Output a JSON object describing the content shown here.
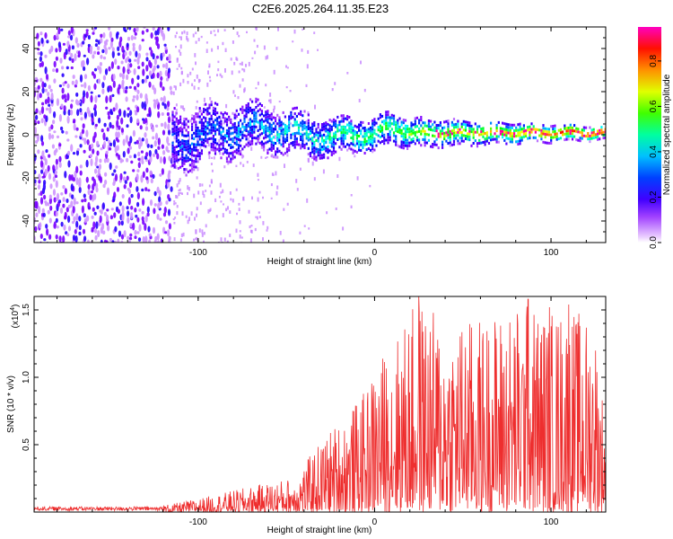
{
  "title": "C2E6.2025.264.11.35.E23",
  "colors": {
    "signal": "#ee2e2e",
    "frame": "#000000"
  },
  "chart_data": [
    {
      "type": "heatmap",
      "name": "spectrogram",
      "xlabel": "Height of straight line (km)",
      "ylabel": "Frequency (Hz)",
      "xlim": [
        -193,
        131
      ],
      "ylim": [
        -50,
        50
      ],
      "xticks": [
        -100,
        0,
        100
      ],
      "yticks": [
        40,
        20,
        0,
        -20,
        -40
      ],
      "colorbar": {
        "label": "Normalized spectral amplitude",
        "range": [
          0,
          0.95
        ],
        "ticks": [
          0.0,
          0.2,
          0.4,
          0.6,
          0.8
        ],
        "colormap": [
          "#e8c8ff",
          "#8000ff",
          "#0000ff",
          "#00ffff",
          "#00ff00",
          "#ffff00",
          "#ff8000",
          "#ff0000",
          "#ff00a0"
        ]
      },
      "regions": [
        {
          "description": "broadband noise",
          "x_range": [
            -193,
            -115
          ],
          "freq_range": [
            -50,
            50
          ],
          "amplitude": [
            0.05,
            0.2
          ]
        },
        {
          "description": "scattered weak noise",
          "x_range": [
            -115,
            0
          ],
          "freq_range": [
            -50,
            50
          ],
          "amplitude": [
            0.0,
            0.05
          ]
        },
        {
          "description": "signal band",
          "x_range": [
            -115,
            131
          ],
          "freq_center": 0,
          "freq_halfwidth_start": 14,
          "freq_halfwidth_end": 3,
          "amplitude": [
            0.1,
            0.95
          ]
        }
      ]
    },
    {
      "type": "line",
      "name": "snr",
      "xlabel": "Height of straight line (km)",
      "ylabel": "SNR (10 * v/v)",
      "y_multiplier_label": "(x10",
      "y_multiplier_exponent": "4",
      "y_multiplier_close": ")",
      "xlim": [
        -193,
        131
      ],
      "ylim": [
        0,
        1.6
      ],
      "xticks": [
        -100,
        0,
        100
      ],
      "yticks": [
        0.5,
        1.0,
        1.5
      ],
      "ytick_labels": [
        "0.5",
        "1.0",
        "1.5"
      ],
      "series": [
        {
          "name": "SNR",
          "envelope_x": [
            -193,
            -130,
            -115,
            -100,
            -80,
            -60,
            -45,
            -35,
            -25,
            -15,
            -5,
            0,
            10,
            25,
            40,
            60,
            85,
            100,
            110,
            125,
            131
          ],
          "envelope_max": [
            0.04,
            0.04,
            0.06,
            0.1,
            0.16,
            0.22,
            0.26,
            0.45,
            0.62,
            0.75,
            0.9,
            1.1,
            1.28,
            1.6,
            1.42,
            1.45,
            1.58,
            1.52,
            1.54,
            1.42,
            0.68
          ],
          "peaks": [
            {
              "x": 25,
              "y": 1.6
            },
            {
              "x": 87,
              "y": 1.58
            },
            {
              "x": 110,
              "y": 1.54
            },
            {
              "x": 99,
              "y": 1.52
            }
          ]
        }
      ]
    }
  ]
}
